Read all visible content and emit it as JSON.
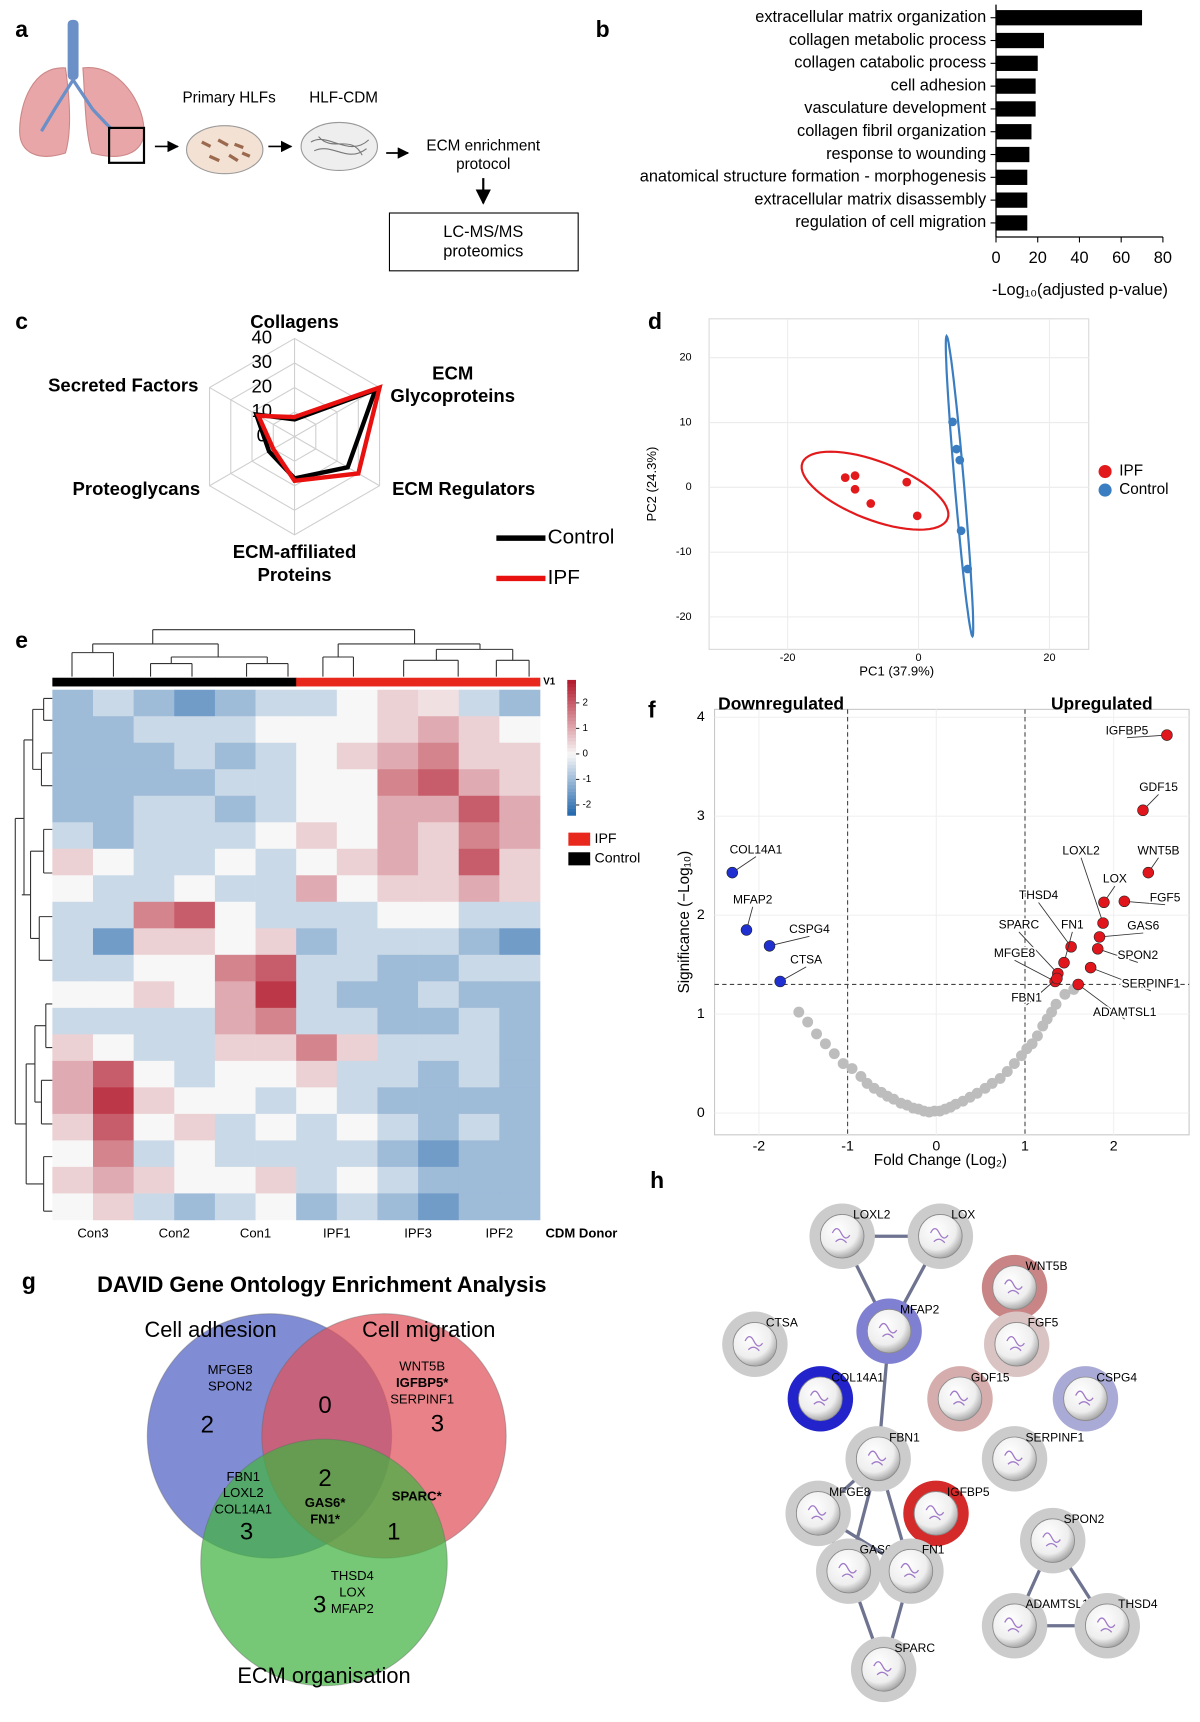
{
  "panel_labels": [
    "a",
    "b",
    "c",
    "d",
    "e",
    "f",
    "g",
    "h"
  ],
  "schematic": {
    "steps": [
      "Primary HLFs",
      "HLF-CDM"
    ],
    "enrichment": [
      "ECM enrichment",
      "protocol"
    ],
    "analysis": [
      "LC-MS/MS",
      "proteomics"
    ]
  },
  "chart_data": [
    {
      "type": "bar",
      "orientation": "horizontal",
      "categories": [
        "extracellular matrix organization",
        "collagen metabolic process",
        "collagen catabolic process",
        "cell adhesion",
        "vasculature development",
        "collagen fibril organization",
        "response to wounding",
        "anatomical structure formation - morphogenesis",
        "extracellular matrix disassembly",
        "regulation of cell migration"
      ],
      "values": [
        70,
        23,
        20,
        19,
        19,
        17,
        16,
        15,
        15,
        15
      ],
      "color": "#000000",
      "xlim": [
        0,
        80
      ],
      "xticks": [
        0,
        20,
        40,
        60,
        80
      ],
      "xlabel": "-Log₁₀(adjusted p-value)"
    },
    {
      "type": "radar",
      "axes": [
        [
          "Collagens"
        ],
        [
          "ECM",
          "Glycoproteins"
        ],
        [
          "ECM Regulators"
        ],
        [
          "ECM-affiliated",
          "Proteins"
        ],
        [
          "Proteoglycans"
        ],
        [
          "Secreted Factors"
        ]
      ],
      "series": [
        {
          "name": "Control",
          "color": "#000000",
          "values": [
            7,
            38,
            25,
            17,
            12,
            18
          ]
        },
        {
          "name": "IPF",
          "color": "#e8110f",
          "values": [
            8,
            40,
            30,
            18,
            10,
            17
          ]
        }
      ],
      "rlim": [
        0,
        40
      ],
      "rticks": [
        0,
        10,
        20,
        30,
        40
      ]
    },
    {
      "type": "scatter",
      "series": [
        {
          "name": "IPF",
          "color": "#e31a1c",
          "x": [
            -11.2,
            -9.7,
            -9.7,
            -7.3,
            -1.8,
            -0.2
          ],
          "values": [
            1.5,
            1.8,
            -0.3,
            -2.5,
            0.8,
            -4.4
          ]
        },
        {
          "name": "Control",
          "color": "#3a7dc0",
          "x": [
            5.2,
            5.8,
            6.3,
            6.5,
            7.5
          ],
          "values": [
            10.1,
            5.9,
            4.2,
            -6.7,
            -12.6
          ]
        }
      ],
      "xlim": [
        -32,
        26
      ],
      "ylim": [
        -25,
        26
      ],
      "xticks": [
        -20,
        0,
        20
      ],
      "yticks": [
        -20,
        -10,
        0,
        10,
        20
      ],
      "xlabel": "PC1 (37.9%)",
      "ylabel": "PC2 (24.3%)",
      "grid": true,
      "ellipses": true,
      "legend": "right"
    },
    {
      "type": "heatmap",
      "x": [
        "Con3",
        null,
        "Con2",
        null,
        "Con1",
        null,
        "IPF1",
        null,
        "IPF3",
        null,
        "IPF2",
        null
      ],
      "xlabel": "CDM Donor",
      "values": [
        [
          -1,
          -0.5,
          -1,
          -1.5,
          -1,
          -0.5,
          -0.5,
          0,
          0.5,
          0.3,
          -0.5,
          -1
        ],
        [
          -1,
          -1,
          -0.5,
          -0.5,
          -0.5,
          0,
          0,
          0,
          0.5,
          1,
          0.5,
          0
        ],
        [
          -1,
          -1,
          -1,
          -0.5,
          -1,
          -0.5,
          0,
          0.5,
          1,
          1.5,
          0.5,
          0.5
        ],
        [
          -1,
          -1,
          -1,
          -1,
          -0.5,
          -0.5,
          0,
          0,
          1.5,
          2,
          1,
          0.5
        ],
        [
          -1,
          -1,
          -0.5,
          -0.5,
          -1,
          -0.5,
          0,
          0,
          1,
          1,
          2,
          1
        ],
        [
          -0.5,
          -1,
          -0.5,
          -0.5,
          -0.5,
          0,
          0.5,
          0,
          1,
          0.5,
          1.5,
          1
        ],
        [
          0.5,
          0,
          -0.5,
          -0.5,
          0,
          -0.5,
          0,
          0.5,
          1,
          0.5,
          2,
          0.5
        ],
        [
          0,
          -0.5,
          -0.5,
          0,
          -0.5,
          -0.5,
          1,
          0,
          0.5,
          0.5,
          1,
          0.5
        ],
        [
          -0.5,
          -0.5,
          1.5,
          2,
          0,
          -0.5,
          -0.5,
          -0.5,
          0,
          0,
          -0.5,
          -0.5
        ],
        [
          -0.5,
          -1.5,
          0.5,
          0.5,
          0,
          0.5,
          -1,
          -0.5,
          -0.5,
          -0.5,
          -1,
          -1.5
        ],
        [
          -0.5,
          -0.5,
          0,
          0,
          1.5,
          2,
          -0.5,
          -0.5,
          -1,
          -1,
          -0.5,
          -0.5
        ],
        [
          0,
          0,
          0.5,
          0,
          1,
          2.5,
          -0.5,
          -1,
          -1,
          -0.5,
          -1,
          -1
        ],
        [
          -0.5,
          -0.5,
          -0.5,
          -0.5,
          1,
          1.5,
          -0.5,
          -0.5,
          -1,
          -1,
          -0.5,
          -1
        ],
        [
          0.5,
          0,
          -0.5,
          -0.5,
          0.5,
          0.5,
          1.5,
          0.5,
          -0.5,
          -0.5,
          -0.5,
          -1
        ],
        [
          1,
          2,
          0,
          -0.5,
          0,
          0,
          0.5,
          -0.5,
          -0.5,
          -1,
          -0.5,
          -1
        ],
        [
          1,
          2.5,
          0.5,
          0,
          0,
          -0.5,
          0,
          -0.5,
          -1,
          -1,
          -1,
          -1
        ],
        [
          0.5,
          2,
          0,
          0.5,
          -0.5,
          0,
          -0.5,
          0,
          -0.5,
          -1,
          -0.5,
          -1
        ],
        [
          0,
          1.5,
          -0.5,
          0,
          -0.5,
          -0.5,
          -0.5,
          -0.5,
          -1,
          -1.5,
          -1,
          -1
        ],
        [
          0.5,
          1,
          0.5,
          0,
          0,
          0.5,
          -0.5,
          0,
          -0.5,
          -1,
          -1,
          -1
        ],
        [
          0,
          0.5,
          -0.5,
          -1,
          -0.5,
          0,
          -1,
          -0.5,
          -1,
          -1.5,
          -1,
          -1
        ]
      ],
      "clim": [
        -2.4,
        2.9
      ],
      "cticks": [
        -2,
        -1,
        0,
        1,
        2
      ],
      "annotation": {
        "name": "V1",
        "values": [
          "Control",
          "Control",
          "Control",
          "Control",
          "Control",
          "Control",
          "IPF",
          "IPF",
          "IPF",
          "IPF",
          "IPF",
          "IPF"
        ]
      },
      "legend": [
        {
          "name": "IPF",
          "color": "#e8281c"
        },
        {
          "name": "Control",
          "color": "#000000"
        }
      ]
    },
    {
      "type": "scatter",
      "subtype": "volcano",
      "series": [
        {
          "color": "#e0161c",
          "x": [
            2.6,
            2.33,
            2.39,
            1.88,
            1.89,
            2.12,
            1.52,
            1.44,
            1.37,
            1.84,
            1.34,
            1.82,
            1.74,
            1.36,
            1.6
          ],
          "values": [
            3.82,
            3.06,
            2.43,
            1.92,
            2.13,
            2.14,
            1.68,
            1.52,
            1.41,
            1.78,
            1.33,
            1.66,
            1.47,
            1.36,
            1.3
          ],
          "labels": [
            "IGFBP5",
            "GDF15",
            "WNT5B",
            "LOXL2",
            "LOX",
            "FGF5",
            "THSD4",
            "FN1",
            "SPARC",
            "GAS6",
            "MFGE8",
            "SPON2",
            "SERPINF1",
            "FBN1",
            "ADAMTSL1"
          ]
        },
        {
          "color": "#1f2fd0",
          "x": [
            -2.3,
            -2.14,
            -1.88,
            -1.76
          ],
          "values": [
            2.43,
            1.85,
            1.69,
            1.33
          ],
          "labels": [
            "COL14A1",
            "MFAP2",
            "CSPG4",
            "CTSA"
          ]
        },
        {
          "color": "#bdbdbd",
          "x": [
            -1.55,
            -1.45,
            -1.35,
            -1.25,
            -1.15,
            -1.05,
            -0.95,
            -0.85,
            -0.78,
            -0.7,
            -0.62,
            -0.55,
            -0.48,
            -0.4,
            -0.33,
            -0.26,
            -0.2,
            -0.14,
            -0.08,
            -0.02,
            0.04,
            0.1,
            0.16,
            0.22,
            0.3,
            0.38,
            0.46,
            0.55,
            0.63,
            0.72,
            0.8,
            0.88,
            0.96,
            1.02,
            1.08,
            1.14,
            1.2,
            1.25,
            1.3,
            1.35,
            1.45,
            1.55
          ],
          "values": [
            1.02,
            0.92,
            0.8,
            0.7,
            0.6,
            0.5,
            0.45,
            0.37,
            0.3,
            0.25,
            0.21,
            0.17,
            0.14,
            0.1,
            0.08,
            0.05,
            0.04,
            0.02,
            0.01,
            0.02,
            0.02,
            0.04,
            0.06,
            0.09,
            0.12,
            0.16,
            0.2,
            0.25,
            0.3,
            0.35,
            0.42,
            0.5,
            0.58,
            0.65,
            0.7,
            0.78,
            0.88,
            0.95,
            1.02,
            1.1,
            1.2,
            1.25
          ]
        }
      ],
      "xlim": [
        -2.5,
        2.85
      ],
      "ylim": [
        -0.22,
        4.08
      ],
      "xticks": [
        -2,
        -1,
        0,
        1,
        2
      ],
      "yticks": [
        0,
        1,
        2,
        3,
        4
      ],
      "thresholds": {
        "x": [
          -1,
          1
        ],
        "y": 1.3
      },
      "xlabel": "Fold Change (Log₂)",
      "ylabel": "Significance (−Log₁₀)",
      "annotations": [
        "Downregulated",
        "Upregulated"
      ],
      "grid": true
    }
  ],
  "venn": {
    "title": "DAVID Gene Ontology Enrichment Analysis",
    "sets": [
      "Cell adhesion",
      "Cell migration",
      "ECM organisation"
    ],
    "regions": [
      {
        "count": 2,
        "genes": [
          "MFGE8",
          "SPON2"
        ]
      },
      {
        "count": 3,
        "genes": [
          "WNT5B",
          "IGFBP5*",
          "SERPINF1"
        ]
      },
      {
        "count": 0,
        "genes": []
      },
      {
        "count": 3,
        "genes": [
          "FBN1",
          "LOXL2",
          "COL14A1"
        ]
      },
      {
        "count": 2,
        "genes": [
          "GAS6*",
          "FN1*"
        ]
      },
      {
        "count": 1,
        "genes": [
          "SPARC*"
        ]
      },
      {
        "count": 3,
        "genes": [
          "THSD4",
          "LOX",
          "MFAP2"
        ]
      }
    ]
  },
  "network": {
    "nodes": [
      {
        "label": "LOXL2",
        "color": "#cccccc"
      },
      {
        "label": "LOX",
        "color": "#cccccc"
      },
      {
        "label": "WNT5B",
        "color": "#c98585"
      },
      {
        "label": "MFAP2",
        "color": "#8080d2"
      },
      {
        "label": "CTSA",
        "color": "#cccccc"
      },
      {
        "label": "FGF5",
        "color": "#d9c3c3"
      },
      {
        "label": "COL14A1",
        "color": "#2323cc"
      },
      {
        "label": "GDF15",
        "color": "#d6adad"
      },
      {
        "label": "CSPG4",
        "color": "#aaaad6"
      },
      {
        "label": "FBN1",
        "color": "#cccccc"
      },
      {
        "label": "SERPINF1",
        "color": "#cccccc"
      },
      {
        "label": "MFGE8",
        "color": "#cccccc"
      },
      {
        "label": "IGFBP5",
        "color": "#d42a2a"
      },
      {
        "label": "SPON2",
        "color": "#cccccc"
      },
      {
        "label": "GAS6",
        "color": "#cccccc"
      },
      {
        "label": "FN1",
        "color": "#cccccc"
      },
      {
        "label": "ADAMTSL1",
        "color": "#cccccc"
      },
      {
        "label": "THSD4",
        "color": "#cccccc"
      },
      {
        "label": "SPARC",
        "color": "#cccccc"
      }
    ]
  }
}
